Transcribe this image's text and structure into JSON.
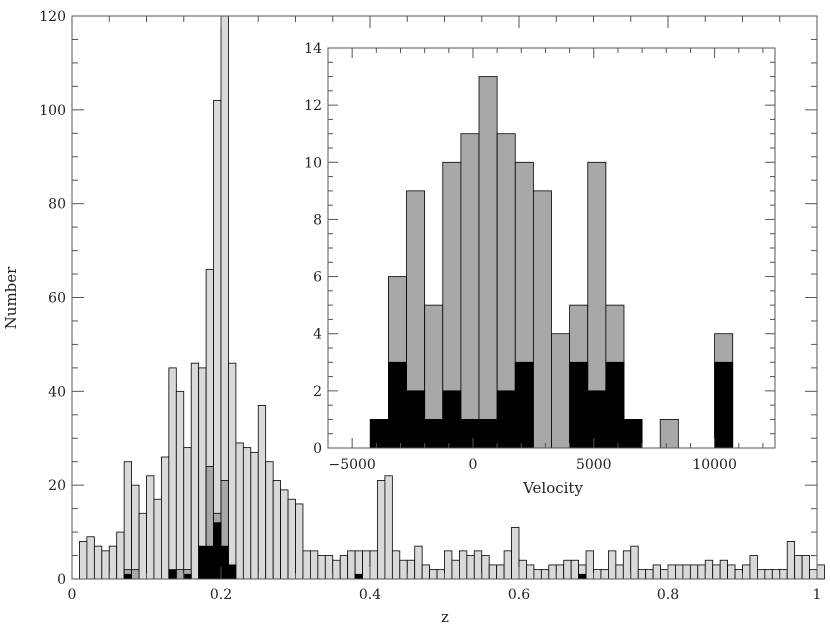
{
  "chart_data": [
    {
      "type": "bar",
      "title": "",
      "xlabel": "z",
      "ylabel": "Number",
      "xlim": [
        0,
        1
      ],
      "ylim": [
        0,
        120
      ],
      "xticks": [
        0,
        0.2,
        0.4,
        0.6,
        0.8,
        1
      ],
      "xtick_labels": [
        "0",
        "0.2",
        "0.4",
        "0.6",
        "0.8",
        "1"
      ],
      "yticks": [
        0,
        20,
        40,
        60,
        80,
        100,
        120
      ],
      "ytick_labels": [
        "0",
        "20",
        "40",
        "60",
        "80",
        "100",
        "120"
      ],
      "bin_width": 0.01,
      "bin_start": 0.01,
      "series": [
        {
          "role": "all",
          "color": "#d9d9d9",
          "values": [
            8,
            9,
            7,
            6,
            7,
            10,
            25,
            20,
            14,
            22,
            17,
            26,
            45,
            40,
            28,
            46,
            45,
            66,
            102,
            120,
            46,
            29,
            28,
            27,
            37,
            25,
            21,
            19,
            17,
            16,
            6,
            6,
            5,
            5,
            4,
            5,
            6,
            6,
            6,
            6,
            21,
            22,
            6,
            4,
            4,
            7,
            3,
            2,
            2,
            6,
            4,
            6,
            5,
            6,
            5,
            3,
            3,
            6,
            11,
            4,
            3,
            2,
            2,
            3,
            3,
            4,
            4,
            3,
            6,
            2,
            2,
            6,
            3,
            6,
            7,
            2,
            2,
            3,
            2,
            3,
            3,
            3,
            3,
            3,
            4,
            3,
            4,
            3,
            2,
            3,
            5,
            2,
            2,
            2,
            2,
            8,
            5,
            5,
            2,
            3
          ]
        },
        {
          "role": "subset",
          "color": "#a8a8a8",
          "values": [
            0,
            0,
            0,
            0,
            0,
            0,
            2,
            2,
            0,
            0,
            0,
            0,
            0,
            2,
            2,
            0,
            0,
            24,
            14,
            21,
            0,
            0,
            0,
            0,
            0,
            0,
            0,
            0,
            0,
            0,
            0,
            0,
            0,
            0,
            0,
            0,
            0,
            0,
            0,
            0,
            0,
            0,
            0,
            0,
            0,
            0,
            0,
            0,
            0,
            0,
            0,
            0,
            0,
            0,
            0,
            0,
            0,
            0,
            0,
            0,
            0,
            0,
            0,
            0,
            0,
            0,
            0,
            0,
            0,
            0,
            0,
            0,
            0,
            0,
            0,
            0,
            0,
            0,
            0,
            0,
            0,
            0,
            0,
            0,
            0,
            0,
            0,
            0,
            0,
            0,
            0,
            0,
            0,
            0,
            0,
            0,
            0,
            0,
            0,
            0
          ]
        },
        {
          "role": "core",
          "color": "#000000",
          "values": [
            0,
            0,
            0,
            0,
            0,
            0,
            1,
            0,
            0,
            0,
            0,
            0,
            2,
            0,
            1,
            0,
            7,
            7,
            12,
            7,
            3,
            0,
            0,
            0,
            0,
            0,
            0,
            0,
            0,
            0,
            0,
            0,
            0,
            0,
            0,
            0,
            0,
            1,
            0,
            0,
            0,
            0,
            0,
            0,
            0,
            0,
            0,
            0,
            0,
            0,
            0,
            0,
            0,
            0,
            0,
            0,
            0,
            0,
            0,
            0,
            0,
            0,
            0,
            0,
            0,
            0,
            0,
            1,
            0,
            0,
            0,
            0,
            0,
            0,
            0,
            0,
            0,
            0,
            0,
            0,
            0,
            0,
            0,
            0,
            0,
            0,
            0,
            0,
            0,
            0,
            0,
            0,
            0,
            0,
            0,
            0,
            0,
            0,
            0,
            0
          ]
        }
      ]
    },
    {
      "type": "bar",
      "title": "",
      "xlabel": "Velocity",
      "ylabel": "",
      "xlim": [
        -6000,
        12500
      ],
      "ylim": [
        0,
        14
      ],
      "xticks": [
        -5000,
        0,
        5000,
        10000
      ],
      "xtick_labels": [
        "−5000",
        "0",
        "5000",
        "10000"
      ],
      "yticks": [
        0,
        2,
        4,
        6,
        8,
        10,
        12,
        14
      ],
      "ytick_labels": [
        "0",
        "2",
        "4",
        "6",
        "8",
        "10",
        "12",
        "14"
      ],
      "bin_width": 750,
      "bin_start": -4250,
      "series": [
        {
          "role": "all",
          "color": "#a8a8a8",
          "values": [
            1,
            6,
            9,
            5,
            10,
            11,
            13,
            11,
            10,
            9,
            4,
            5,
            10,
            5,
            1,
            0,
            1,
            0,
            0,
            4
          ]
        },
        {
          "role": "core",
          "color": "#000000",
          "values": [
            1,
            3,
            2,
            1,
            2,
            1,
            1,
            2,
            3,
            0,
            0,
            3,
            2,
            3,
            1,
            0,
            0,
            0,
            0,
            3
          ]
        }
      ]
    }
  ]
}
